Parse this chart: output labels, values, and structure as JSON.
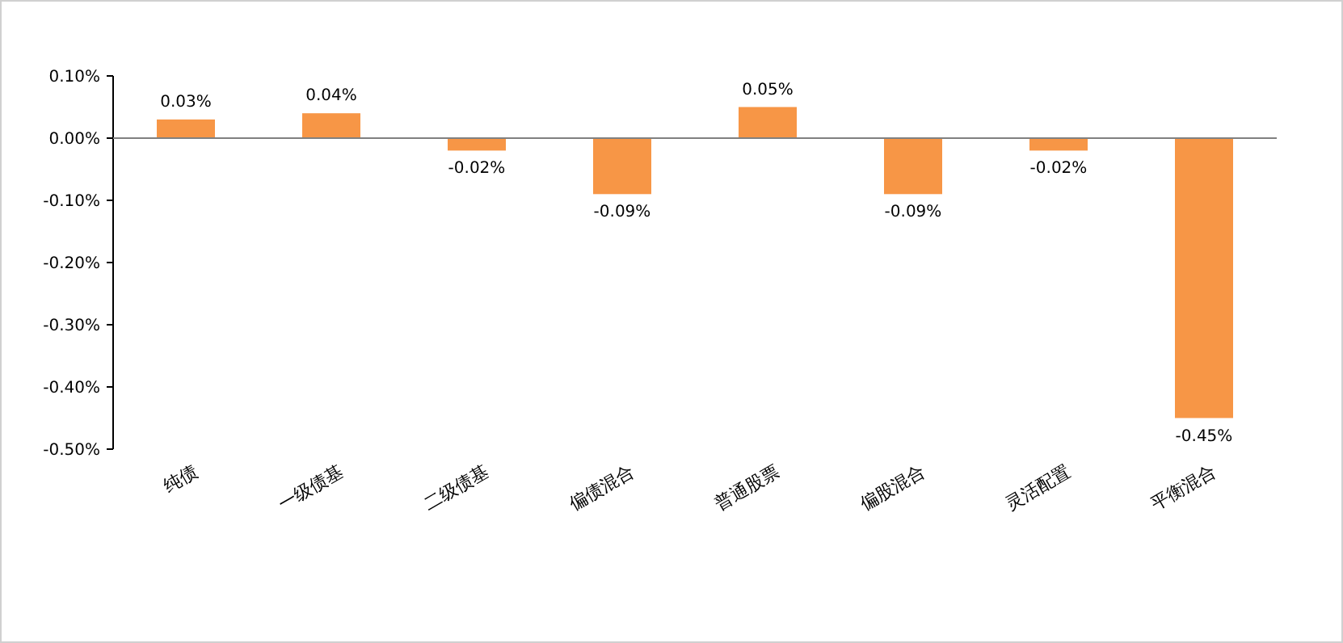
{
  "chart_data": {
    "type": "bar",
    "categories": [
      "纯债",
      "一级债基",
      "二级债基",
      "偏债混合",
      "普通股票",
      "偏股混合",
      "灵活配置",
      "平衡混合"
    ],
    "values": [
      0.03,
      0.04,
      -0.02,
      -0.09,
      0.05,
      -0.09,
      -0.02,
      -0.45
    ],
    "value_labels": [
      "0.03%",
      "0.04%",
      "-0.02%",
      "-0.09%",
      "0.05%",
      "-0.09%",
      "-0.02%",
      "-0.45%"
    ],
    "color": "#f79646",
    "ylim": [
      -0.5,
      0.1
    ],
    "yticks": [
      {
        "value": 0.1,
        "label": "0.10%"
      },
      {
        "value": 0,
        "label": "0.00%"
      },
      {
        "value": -0.1,
        "label": "-0.10%"
      },
      {
        "value": -0.2,
        "label": "-0.20%"
      },
      {
        "value": -0.3,
        "label": "-0.30%"
      },
      {
        "value": -0.4,
        "label": "-0.40%"
      },
      {
        "value": -0.5,
        "label": "-0.50%"
      }
    ],
    "grid": "y"
  }
}
